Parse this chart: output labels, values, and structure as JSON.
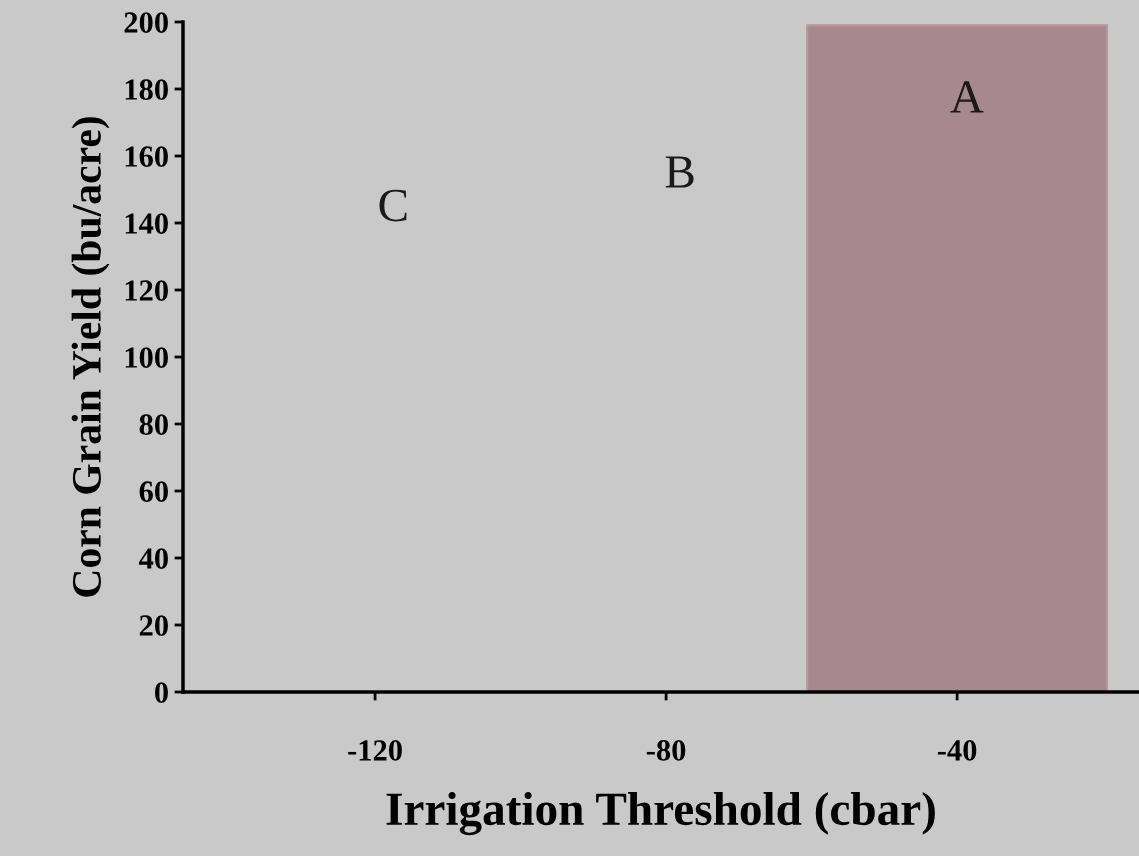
{
  "chart_data": {
    "type": "bar",
    "xlabel": "Irrigation Threshold (cbar)",
    "ylabel": "Corn Grain Yield (bu/acre)",
    "categories": [
      "-120",
      "-80",
      "-40"
    ],
    "values": [
      null,
      null,
      199
    ],
    "color": "#a07f86",
    "ylim": [
      0,
      200
    ],
    "yticks": [
      0,
      20,
      40,
      60,
      80,
      100,
      120,
      140,
      160,
      180,
      200
    ],
    "annotations": [
      "C",
      "B",
      "A"
    ]
  }
}
